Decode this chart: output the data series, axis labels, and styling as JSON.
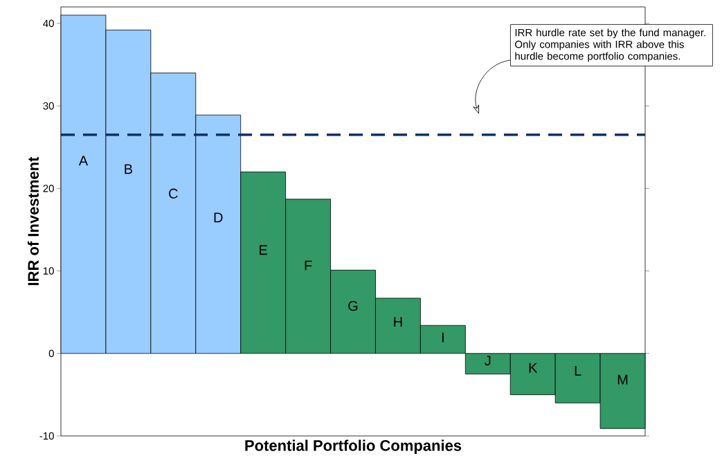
{
  "chart_data": {
    "type": "bar",
    "xlabel": "Potential Portfolio Companies",
    "ylabel": "IRR of Investment",
    "categories": [
      "A",
      "B",
      "C",
      "D",
      "E",
      "F",
      "G",
      "H",
      "I",
      "J",
      "K",
      "L",
      "M"
    ],
    "values": [
      41,
      39.2,
      34,
      28.9,
      22,
      18.7,
      10.1,
      6.7,
      3.4,
      -2.5,
      -5,
      -6,
      -9.1
    ],
    "colors": [
      "#99ccff",
      "#99ccff",
      "#99ccff",
      "#99ccff",
      "#339966",
      "#339966",
      "#339966",
      "#339966",
      "#339966",
      "#339966",
      "#339966",
      "#339966",
      "#339966"
    ],
    "ylim": [
      -10,
      42
    ],
    "yticks": [
      -10,
      0,
      10,
      20,
      30,
      40
    ],
    "tick_labels": "y",
    "ref_lines": [
      {
        "axis": "y",
        "value": 26.5,
        "color": "#003366",
        "line_style": "dashed"
      }
    ],
    "annotations": [
      "IRR hurdle rate set by the fund manager.  Only companies with IRR above this hurdle become portfolio companies."
    ]
  }
}
